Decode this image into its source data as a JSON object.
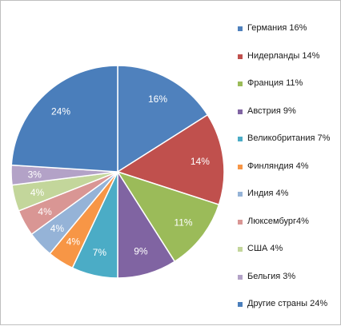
{
  "chart_data": {
    "type": "pie",
    "title": "",
    "start_angle_deg": 0,
    "direction": "clockwise",
    "legend_position": "right",
    "slices": [
      {
        "label": "Германия  16%",
        "value": 16,
        "data_label": "16%",
        "color": "#4f81bd"
      },
      {
        "label": "Нидерланды 14%",
        "value": 14,
        "data_label": "14%",
        "color": "#c0504d"
      },
      {
        "label": "Франция 11%",
        "value": 11,
        "data_label": "11%",
        "color": "#9bbb59"
      },
      {
        "label": "Австрия 9%",
        "value": 9,
        "data_label": "9%",
        "color": "#8064a2"
      },
      {
        "label": "Великобритания 7%",
        "value": 7,
        "data_label": "7%",
        "color": "#4bacc6"
      },
      {
        "label": "Финляндия 4%",
        "value": 4,
        "data_label": "4%",
        "color": "#f79646"
      },
      {
        "label": "Индия 4%",
        "value": 4,
        "data_label": "4%",
        "color": "#95b3d7"
      },
      {
        "label": "Люксембург4%",
        "value": 4,
        "data_label": "4%",
        "color": "#d99694"
      },
      {
        "label": "США 4%",
        "value": 4,
        "data_label": "4%",
        "color": "#c3d69b"
      },
      {
        "label": "Бельгия 3%",
        "value": 3,
        "data_label": "3%",
        "color": "#b3a2c7"
      },
      {
        "label": "Другие страны 24%",
        "value": 24,
        "data_label": "24%",
        "color": "#4a7ebb"
      }
    ]
  }
}
